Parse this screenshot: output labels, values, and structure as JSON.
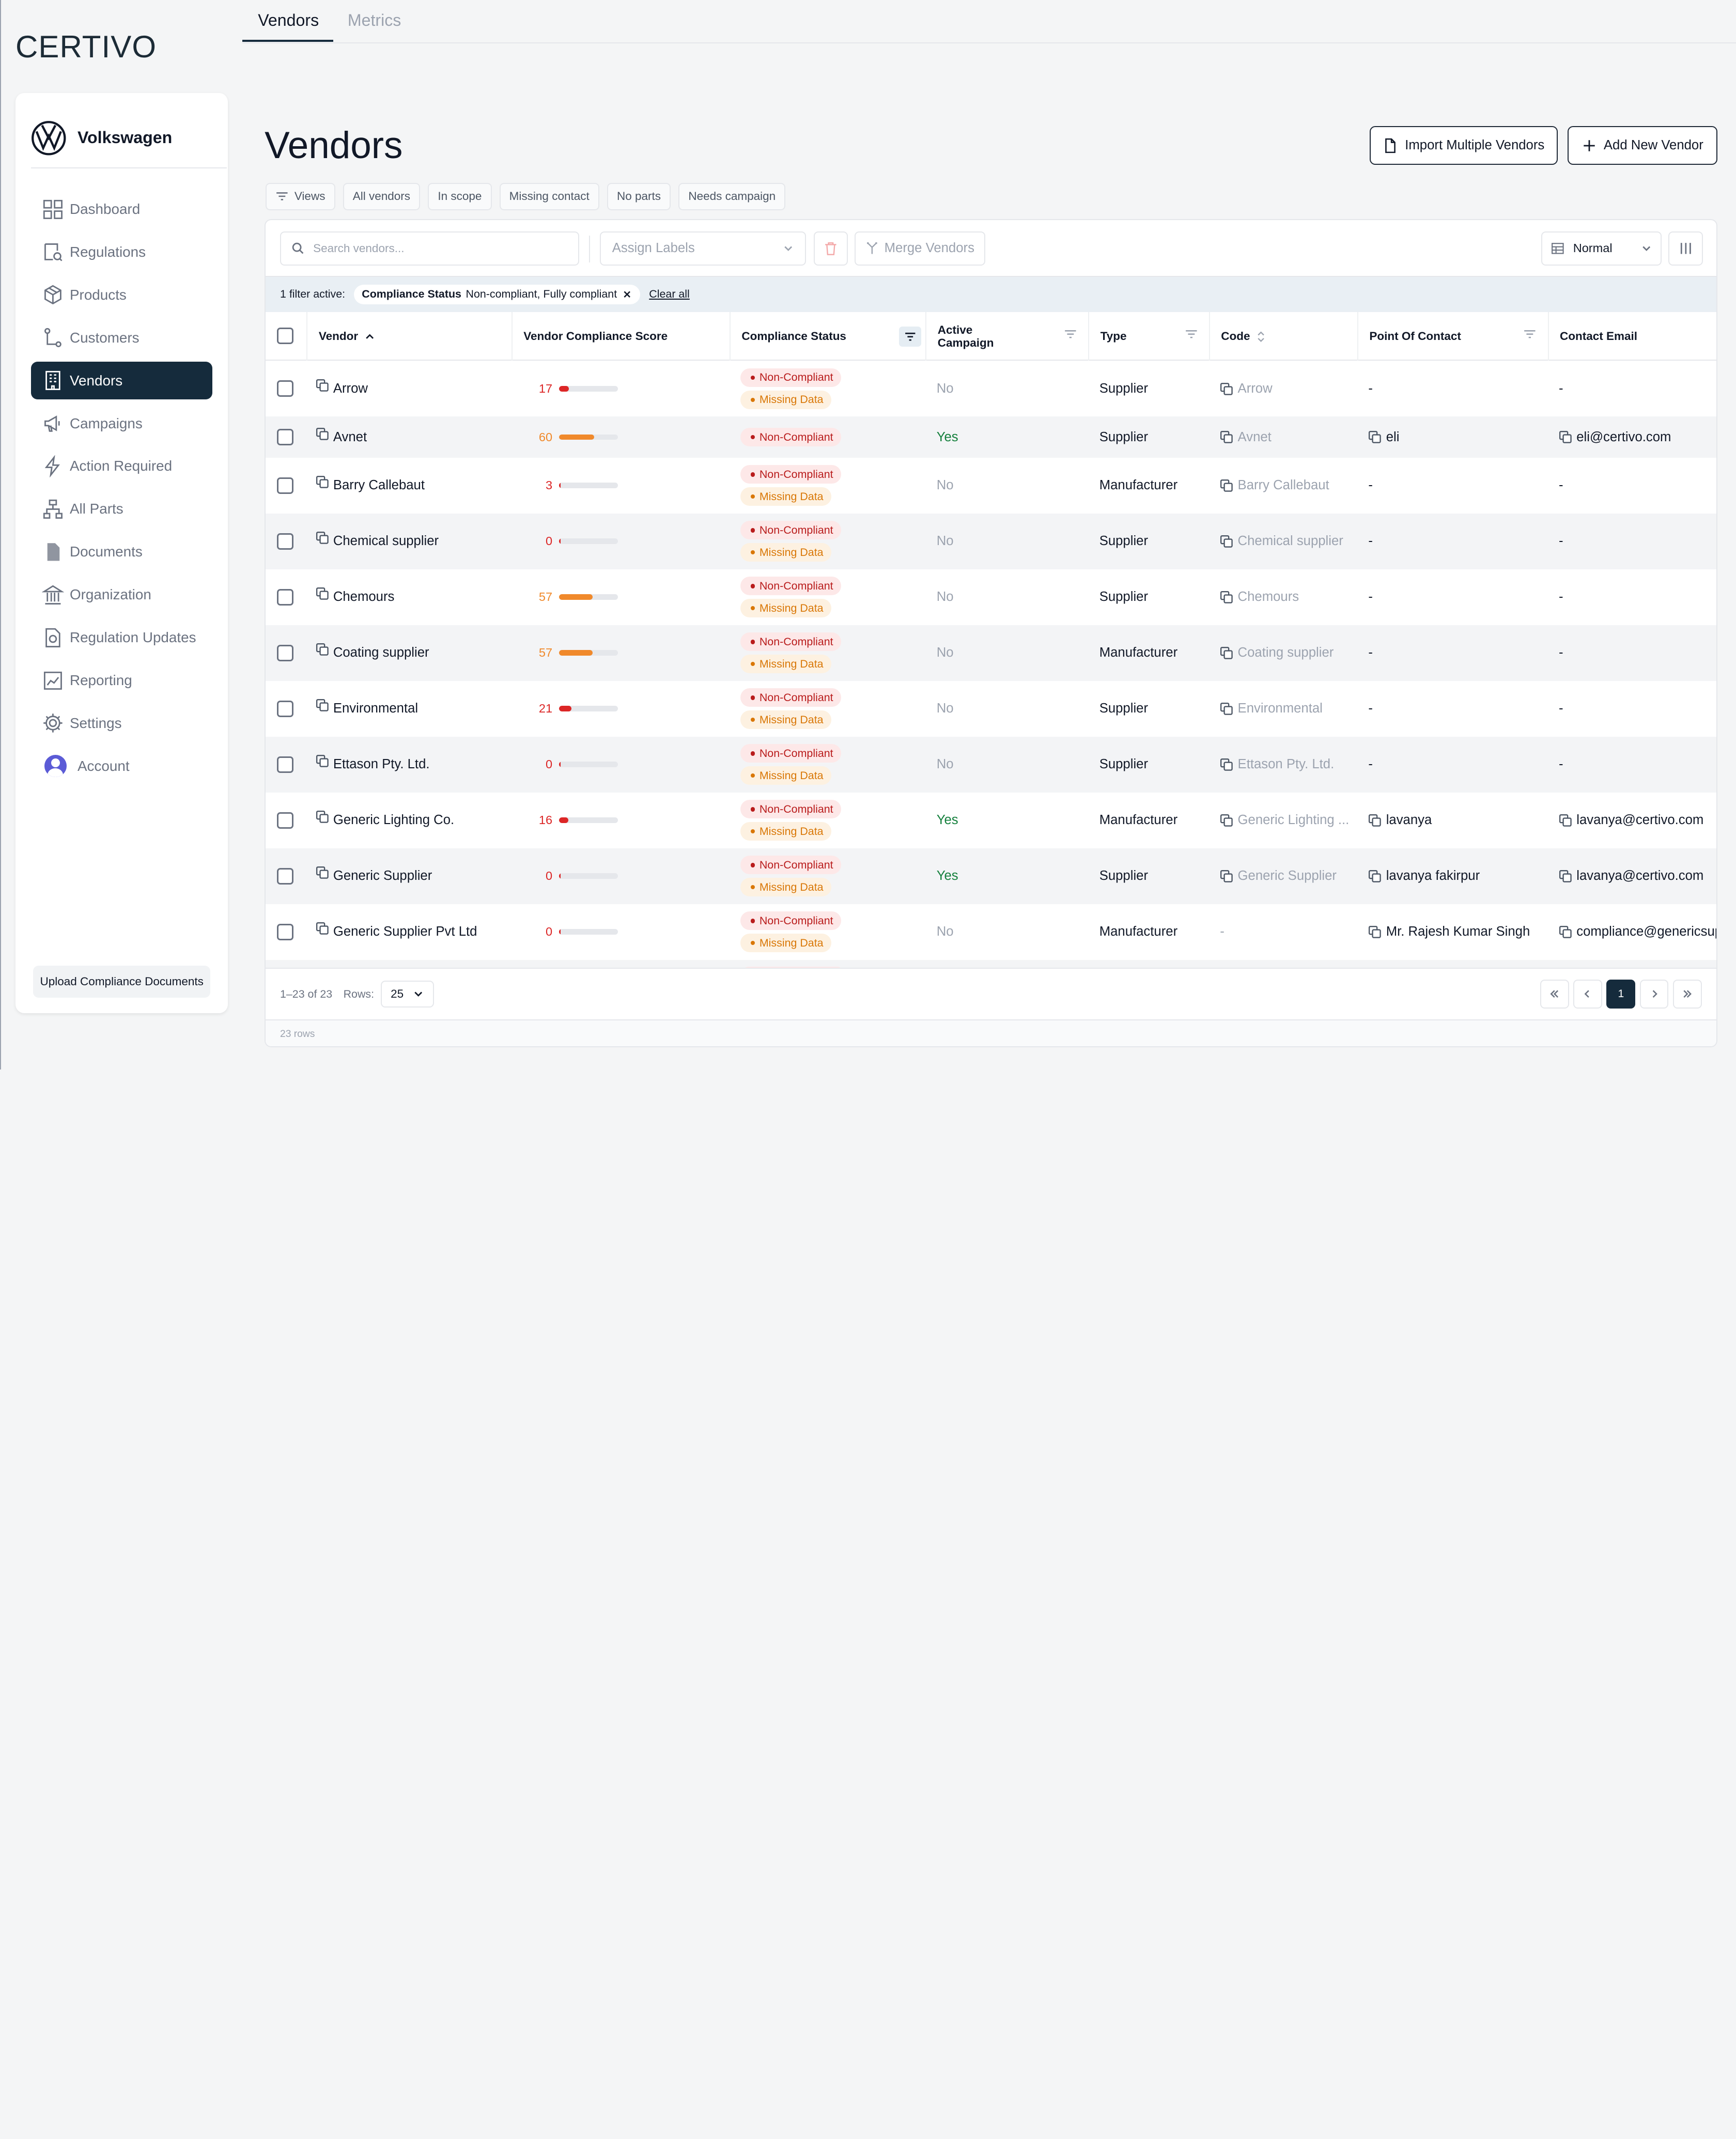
{
  "app": {
    "logo": "CERTIVO",
    "org_name": "Volkswagen"
  },
  "top_tabs": [
    {
      "label": "Vendors",
      "active": true
    },
    {
      "label": "Metrics",
      "active": false
    }
  ],
  "sidebar": {
    "items": [
      {
        "label": "Dashboard",
        "icon": "grid-icon"
      },
      {
        "label": "Regulations",
        "icon": "regulation-search-icon"
      },
      {
        "label": "Products",
        "icon": "box-icon"
      },
      {
        "label": "Customers",
        "icon": "route-icon"
      },
      {
        "label": "Vendors",
        "icon": "building-icon",
        "active": true
      },
      {
        "label": "Campaigns",
        "icon": "megaphone-icon"
      },
      {
        "label": "Action Required",
        "icon": "lightning-icon"
      },
      {
        "label": "All Parts",
        "icon": "hierarchy-icon"
      },
      {
        "label": "Documents",
        "icon": "document-icon"
      },
      {
        "label": "Organization",
        "icon": "bank-icon"
      },
      {
        "label": "Regulation Updates",
        "icon": "file-update-icon"
      },
      {
        "label": "Reporting",
        "icon": "report-icon"
      },
      {
        "label": "Settings",
        "icon": "gear-icon"
      },
      {
        "label": "Account",
        "icon": "avatar"
      }
    ],
    "upload_label": "Upload Compliance Documents"
  },
  "page": {
    "title": "Vendors",
    "import_label": "Import Multiple Vendors",
    "add_label": "Add New Vendor"
  },
  "views": [
    "Views",
    "All vendors",
    "In scope",
    "Missing contact",
    "No parts",
    "Needs campaign"
  ],
  "toolbar": {
    "search_placeholder": "Search vendors...",
    "assign_labels": "Assign Labels",
    "merge_label": "Merge Vendors",
    "density": "Normal"
  },
  "filter": {
    "count_text": "1 filter active:",
    "field": "Compliance Status",
    "value": "Non-compliant, Fully compliant",
    "clear_label": "Clear all"
  },
  "columns": {
    "vendor": "Vendor",
    "score": "Vendor Compliance Score",
    "status": "Compliance Status",
    "campaign": "Active Campaign",
    "type": "Type",
    "code": "Code",
    "poc": "Point Of Contact",
    "email": "Contact Email"
  },
  "badge_labels": {
    "non_compliant": "Non-Compliant",
    "missing": "Missing Data"
  },
  "rows": [
    {
      "name": "Arrow",
      "score": "17",
      "missing": true,
      "campaign": "No",
      "type": "Supplier",
      "code": "Arrow",
      "poc": "-",
      "email": "-"
    },
    {
      "name": "Avnet",
      "score": "60",
      "missing": false,
      "campaign": "Yes",
      "type": "Supplier",
      "code": "Avnet",
      "poc": "eli",
      "email": "eli@certivo.com"
    },
    {
      "name": "Barry Callebaut",
      "score": "3",
      "missing": true,
      "campaign": "No",
      "type": "Manufacturer",
      "code": "Barry Callebaut",
      "poc": "-",
      "email": "-"
    },
    {
      "name": "Chemical supplier",
      "score": "0",
      "missing": true,
      "campaign": "No",
      "type": "Supplier",
      "code": "Chemical supplier",
      "poc": "-",
      "email": "-"
    },
    {
      "name": "Chemours",
      "score": "57",
      "missing": true,
      "campaign": "No",
      "type": "Supplier",
      "code": "Chemours",
      "poc": "-",
      "email": "-"
    },
    {
      "name": "Coating supplier",
      "score": "57",
      "missing": true,
      "campaign": "No",
      "type": "Manufacturer",
      "code": "Coating supplier",
      "poc": "-",
      "email": "-"
    },
    {
      "name": "Environmental",
      "score": "21",
      "missing": true,
      "campaign": "No",
      "type": "Supplier",
      "code": "Environmental",
      "poc": "-",
      "email": "-"
    },
    {
      "name": "Ettason Pty. Ltd.",
      "score": "0",
      "missing": true,
      "campaign": "No",
      "type": "Supplier",
      "code": "Ettason Pty. Ltd.",
      "poc": "-",
      "email": "-"
    },
    {
      "name": "Generic Lighting Co.",
      "score": "16",
      "missing": true,
      "campaign": "Yes",
      "type": "Manufacturer",
      "code": "Generic Lighting ...",
      "poc": "lavanya",
      "email": "lavanya@certivo.com"
    },
    {
      "name": "Generic Supplier",
      "score": "0",
      "missing": true,
      "campaign": "Yes",
      "type": "Supplier",
      "code": "Generic Supplier",
      "poc": "lavanya fakirpur",
      "email": "lavanya@certivo.com"
    },
    {
      "name": "Generic Supplier Pvt Ltd",
      "score": "0",
      "missing": true,
      "campaign": "No",
      "type": "Manufacturer",
      "code": "-",
      "poc": "Mr. Rajesh Kumar Singh",
      "email": "compliance@genericsupp"
    }
  ],
  "pagination": {
    "range": "1–23 of 23",
    "rows_label": "Rows:",
    "rows_value": "25",
    "current_page": "1",
    "total_rows": "23 rows"
  },
  "colors": {
    "brand_dark": "#152b3c",
    "red": "#dc2626",
    "orange": "#f0892b",
    "green": "#15803d"
  }
}
